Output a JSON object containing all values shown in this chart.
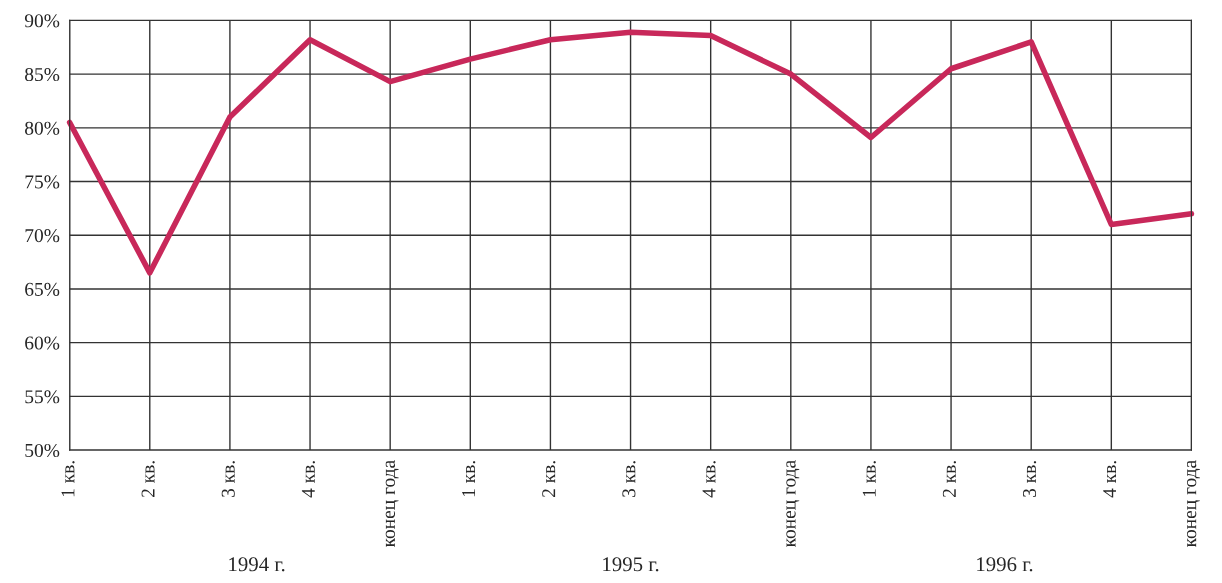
{
  "chart_data": {
    "type": "line",
    "categories": [
      "1 кв.",
      "2 кв.",
      "3 кв.",
      "4 кв.",
      "конец года",
      "1 кв.",
      "2 кв.",
      "3 кв.",
      "4 кв.",
      "конец года",
      "1 кв.",
      "2 кв.",
      "3 кв.",
      "4 кв.",
      "конец года"
    ],
    "series": [
      {
        "color": "#c8285a",
        "values": [
          80.5,
          66.5,
          81,
          88.2,
          84.3,
          86.4,
          88.2,
          88.9,
          88.6,
          85,
          79.1,
          85.5,
          88,
          71,
          72
        ]
      }
    ],
    "ylim": [
      50,
      90
    ],
    "yticks": [
      {
        "value": 50,
        "label": "50%"
      },
      {
        "value": 55,
        "label": "55%"
      },
      {
        "value": 60,
        "label": "60%"
      },
      {
        "value": 65,
        "label": "65%"
      },
      {
        "value": 70,
        "label": "70%"
      },
      {
        "value": 75,
        "label": "75%"
      },
      {
        "value": 80,
        "label": "80%"
      },
      {
        "value": 85,
        "label": "85%"
      },
      {
        "value": 90,
        "label": "90%"
      }
    ],
    "grid": true,
    "marker": "none",
    "line_style": "solid",
    "annotations": [
      "1994 г.",
      "1995 г.",
      "1996 г."
    ]
  }
}
